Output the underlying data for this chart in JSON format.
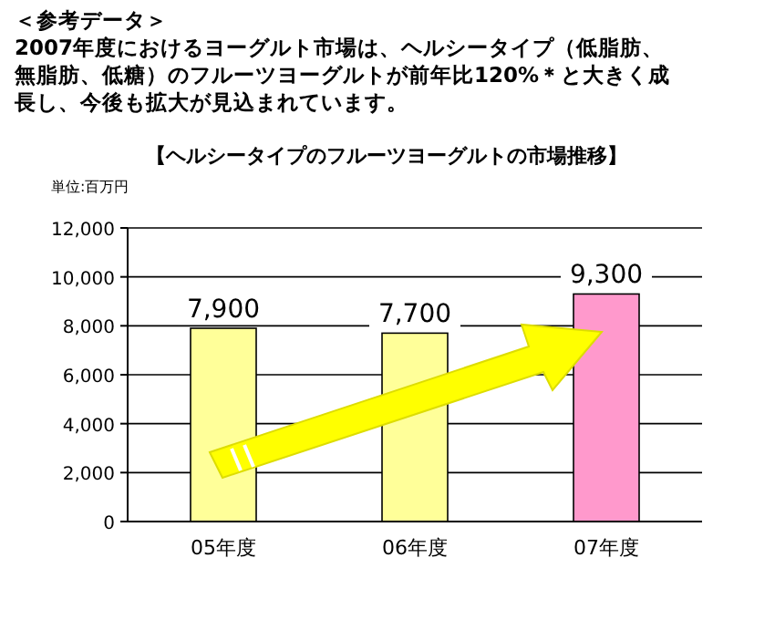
{
  "chart_data": {
    "type": "bar",
    "title": "【ヘルシータイプのフルーツヨーグルトの市場推移】",
    "ylabel": "単位:百万円",
    "annotations": [
      "＜参考データ＞",
      "2007年度におけるヨーグルト市場は、ヘルシータイプ（低脂肪、無脂肪、低糖）のフルーツヨーグルトが前年比120%＊と大きく成長し、今後も拡大が見込まれています。"
    ],
    "categories": [
      "05年度",
      "06年度",
      "07年度"
    ],
    "values": [
      7900,
      7700,
      9300
    ],
    "colors": [
      "#ffff99",
      "#ffff99",
      "#ff99cc"
    ],
    "value_labels": [
      "7,900",
      "7,700",
      "9,300"
    ],
    "ylim": [
      0,
      12000
    ],
    "yticks": [
      0,
      {
        "value": 2000,
        "label": "2,000"
      },
      {
        "value": 4000,
        "label": "4,000"
      },
      {
        "value": 6000,
        "label": "6,000"
      },
      {
        "value": 8000,
        "label": "8,000"
      },
      {
        "value": 10000,
        "label": "10,000"
      },
      {
        "value": 12000,
        "label": "12,000"
      }
    ],
    "grid": "y"
  }
}
